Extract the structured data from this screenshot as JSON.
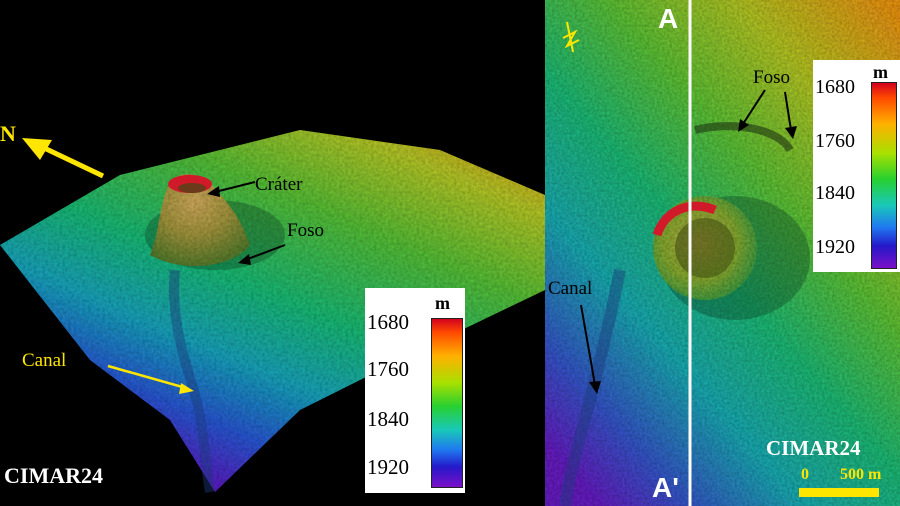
{
  "left": {
    "north_label": "N",
    "labels": {
      "crater": "Cráter",
      "foso": "Foso",
      "canal": "Canal",
      "brand": "CIMAR24"
    },
    "colorbar": {
      "unit": "m",
      "ticks": [
        "1680",
        "1760",
        "1840",
        "1920"
      ]
    }
  },
  "right": {
    "profile_top": "A",
    "profile_bottom": "A'",
    "labels": {
      "foso": "Foso",
      "canal": "Canal",
      "brand": "CIMAR24"
    },
    "colorbar": {
      "unit": "m",
      "ticks": [
        "1680",
        "1760",
        "1840",
        "1920"
      ]
    },
    "scale_bar": {
      "start": "0",
      "end": "500 m"
    }
  },
  "colors": {
    "accent_yellow": "#ffe600",
    "profile_line": "#ffffff"
  }
}
